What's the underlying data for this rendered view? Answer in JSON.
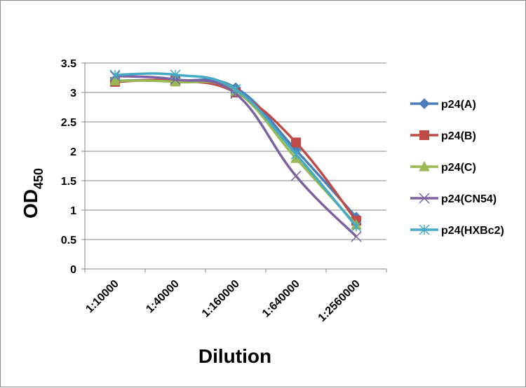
{
  "chart_data": {
    "type": "line",
    "categories": [
      "1:10000",
      "1:40000",
      "1:160000",
      "1:640000",
      "1:2560000"
    ],
    "xlabel": "Dilution",
    "ylabel": {
      "main": "OD",
      "sub": "450"
    },
    "ylim": [
      0,
      3.5
    ],
    "yticks": [
      "0",
      "0.5",
      "1",
      "1.5",
      "2",
      "2.5",
      "3",
      "3.5"
    ],
    "grid": true,
    "legend_position": "right",
    "series": [
      {
        "name": "p24(A)",
        "color": "#4a7ebb",
        "marker": "diamond",
        "values": [
          3.2,
          3.2,
          3.08,
          2.02,
          0.88
        ]
      },
      {
        "name": "p24(B)",
        "color": "#be4b48",
        "marker": "square",
        "values": [
          3.18,
          3.2,
          3.0,
          2.15,
          0.82
        ]
      },
      {
        "name": "p24(C)",
        "color": "#98b954",
        "marker": "triangle",
        "values": [
          3.2,
          3.18,
          3.02,
          1.88,
          0.75
        ]
      },
      {
        "name": "p24(CN54)",
        "color": "#7d60a0",
        "marker": "x",
        "values": [
          3.28,
          3.22,
          2.98,
          1.58,
          0.55
        ]
      },
      {
        "name": "p24(HXBc2)",
        "color": "#46aac5",
        "marker": "star",
        "values": [
          3.3,
          3.3,
          3.05,
          1.95,
          0.72
        ]
      }
    ]
  }
}
